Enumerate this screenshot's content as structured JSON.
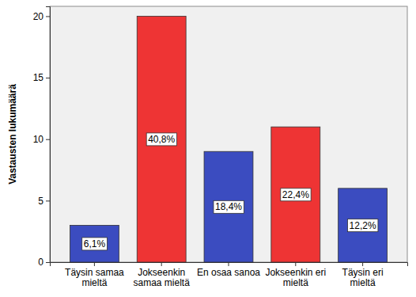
{
  "chart_data": {
    "type": "bar",
    "y_label": "Vastausten lukumäärä",
    "categories": [
      "Täysin samaa mieltä",
      "Jokseenkin samaa mieltä",
      "En osaa sanoa",
      "Jokseenkin eri mieltä",
      "Täysin eri mieltä"
    ],
    "values": [
      3,
      20,
      9,
      11,
      6
    ],
    "colors": [
      "#3b4cc0",
      "#ee3434",
      "#3b4cc0",
      "#ee3434",
      "#3b4cc0"
    ],
    "annotations": [
      "6,1%",
      "40,8%",
      "18,4%",
      "22,4%",
      "12,2%"
    ],
    "ylim": [
      0,
      20.8
    ],
    "yticks": [
      0,
      5,
      10,
      15,
      20
    ],
    "grid": false
  }
}
